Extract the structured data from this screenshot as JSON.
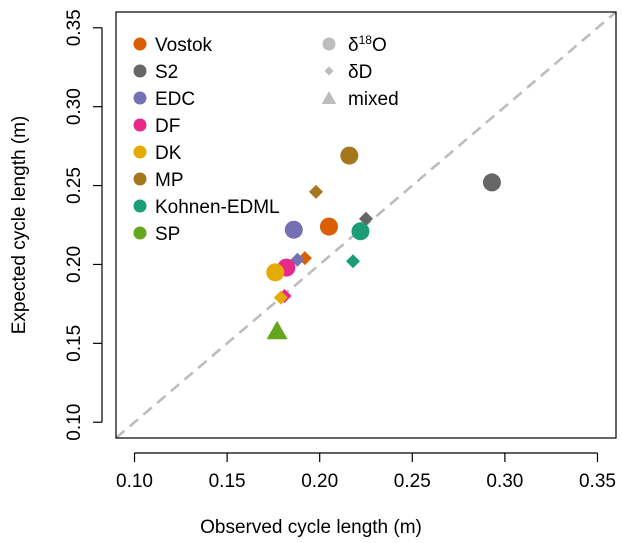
{
  "chart_data": {
    "type": "scatter",
    "title": "",
    "xlabel": "Observed cycle length (m)",
    "ylabel": "Expected cycle length (m)",
    "xlim": [
      0.09,
      0.36
    ],
    "ylim": [
      0.09,
      0.36
    ],
    "xticks": [
      {
        "value": 0.1,
        "label": "0.10"
      },
      {
        "value": 0.15,
        "label": "0.15"
      },
      {
        "value": 0.2,
        "label": "0.20"
      },
      {
        "value": 0.25,
        "label": "0.25"
      },
      {
        "value": 0.3,
        "label": "0.30"
      },
      {
        "value": 0.35,
        "label": "0.35"
      }
    ],
    "yticks": [
      {
        "value": 0.1,
        "label": "0.10"
      },
      {
        "value": 0.15,
        "label": "0.15"
      },
      {
        "value": 0.2,
        "label": "0.20"
      },
      {
        "value": 0.25,
        "label": "0.25"
      },
      {
        "value": 0.3,
        "label": "0.30"
      },
      {
        "value": 0.35,
        "label": "0.35"
      }
    ],
    "reference_line": {
      "type": "identity",
      "style": "dashed",
      "color": "#bdbdbd"
    },
    "grid": false,
    "legend_position": "top-left",
    "legends": {
      "sites": [
        {
          "name": "Vostok",
          "color": "#d95f02"
        },
        {
          "name": "S2",
          "color": "#666666"
        },
        {
          "name": "EDC",
          "color": "#7570b3"
        },
        {
          "name": "DF",
          "color": "#e7298a"
        },
        {
          "name": "DK",
          "color": "#e6ab02"
        },
        {
          "name": "MP",
          "color": "#a6761d"
        },
        {
          "name": "Kohnen-EDML",
          "color": "#1b9e77"
        },
        {
          "name": "SP",
          "color": "#66a61e"
        }
      ],
      "proxies": [
        {
          "label": "δ",
          "sup": "18",
          "tail": "O",
          "shape": "circle",
          "color": "#bdbdbd"
        },
        {
          "label": "δD",
          "shape": "diamond",
          "color": "#bdbdbd"
        },
        {
          "label": "mixed",
          "shape": "triangle",
          "color": "#bdbdbd"
        }
      ]
    },
    "points": [
      {
        "site": "Vostok",
        "proxy": "circle",
        "x": 0.205,
        "y": 0.224
      },
      {
        "site": "Vostok",
        "proxy": "diamond",
        "x": 0.192,
        "y": 0.204
      },
      {
        "site": "S2",
        "proxy": "circle",
        "x": 0.293,
        "y": 0.252
      },
      {
        "site": "S2",
        "proxy": "diamond",
        "x": 0.225,
        "y": 0.229
      },
      {
        "site": "EDC",
        "proxy": "circle",
        "x": 0.186,
        "y": 0.222
      },
      {
        "site": "EDC",
        "proxy": "diamond",
        "x": 0.188,
        "y": 0.203
      },
      {
        "site": "DF",
        "proxy": "circle",
        "x": 0.182,
        "y": 0.198
      },
      {
        "site": "DF",
        "proxy": "diamond",
        "x": 0.181,
        "y": 0.18
      },
      {
        "site": "DK",
        "proxy": "circle",
        "x": 0.176,
        "y": 0.195
      },
      {
        "site": "DK",
        "proxy": "diamond",
        "x": 0.179,
        "y": 0.179
      },
      {
        "site": "MP",
        "proxy": "circle",
        "x": 0.216,
        "y": 0.269
      },
      {
        "site": "MP",
        "proxy": "diamond",
        "x": 0.198,
        "y": 0.246
      },
      {
        "site": "Kohnen-EDML",
        "proxy": "circle",
        "x": 0.222,
        "y": 0.221
      },
      {
        "site": "Kohnen-EDML",
        "proxy": "diamond",
        "x": 0.218,
        "y": 0.202
      },
      {
        "site": "SP",
        "proxy": "triangle",
        "x": 0.177,
        "y": 0.158
      }
    ]
  }
}
